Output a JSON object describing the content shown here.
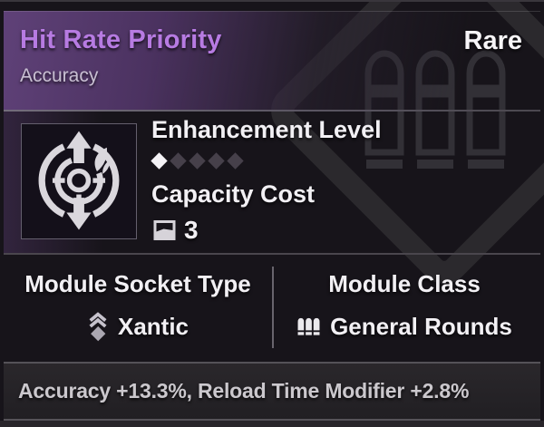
{
  "module_card": {
    "title": "Hit Rate Priority",
    "subtitle": "Accuracy",
    "rarity": "Rare",
    "enhancement": {
      "label": "Enhancement Level",
      "level": 1,
      "max": 5
    },
    "capacity": {
      "label": "Capacity Cost",
      "value": "3"
    },
    "socket": {
      "label": "Module Socket Type",
      "value": "Xantic"
    },
    "module_class": {
      "label": "Module Class",
      "value": "General Rounds"
    },
    "stats": "Accuracy +13.3%, Reload Time Modifier +2.8%",
    "icons": {
      "module_art": "accuracy-targeting-icon",
      "capacity": "capacity-gauge-icon",
      "socket": "xantic-socket-icon",
      "module_class": "general-rounds-icon",
      "watermark": "general-rounds-watermark-icon"
    },
    "colors": {
      "title_text": "#b77be2",
      "header_purple": "#5f4178",
      "rarity_text": "#f7f5f8",
      "pip_filled": "#f4f2f6",
      "pip_empty": "#46404a",
      "stats_text": "#cbc8cd"
    }
  }
}
